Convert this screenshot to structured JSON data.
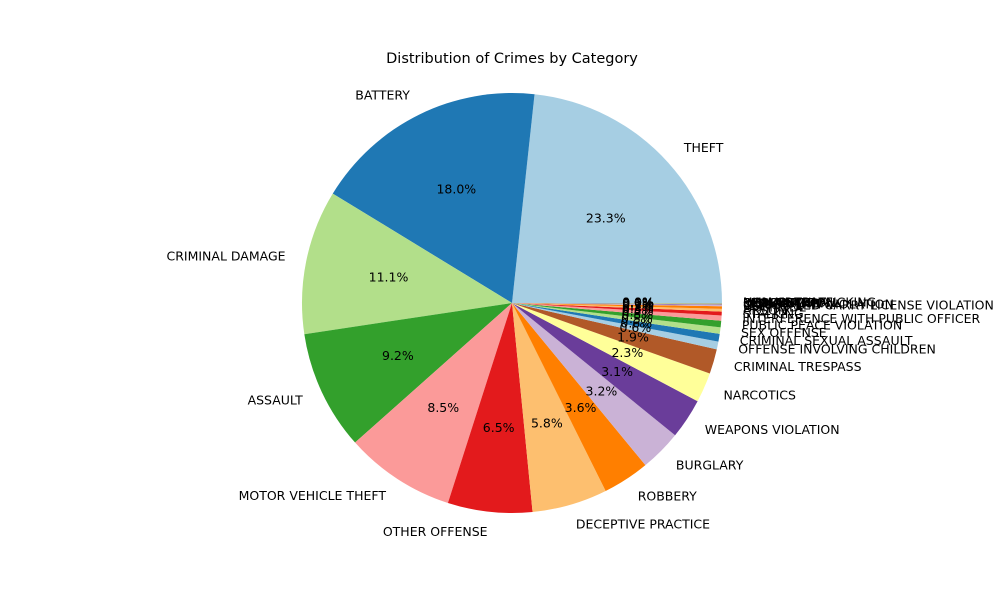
{
  "chart_data": {
    "type": "pie",
    "title": "Distribution of Crimes by Category",
    "legend": "none",
    "start_angle_deg": 0,
    "direction": "counterclockwise",
    "slices": [
      {
        "label": "THEFT",
        "value": 23.3,
        "pct": "23.3%",
        "color": "#a6cee3"
      },
      {
        "label": "BATTERY",
        "value": 18.0,
        "pct": "18.0%",
        "color": "#1f78b4"
      },
      {
        "label": "CRIMINAL DAMAGE",
        "value": 11.1,
        "pct": "11.1%",
        "color": "#b2df8a"
      },
      {
        "label": "ASSAULT",
        "value": 9.2,
        "pct": "9.2%",
        "color": "#33a02c"
      },
      {
        "label": "MOTOR VEHICLE THEFT",
        "value": 8.5,
        "pct": "8.5%",
        "color": "#fb9a99"
      },
      {
        "label": "OTHER OFFENSE",
        "value": 6.5,
        "pct": "6.5%",
        "color": "#e31a1c"
      },
      {
        "label": "DECEPTIVE PRACTICE",
        "value": 5.8,
        "pct": "5.8%",
        "color": "#fdbf6f"
      },
      {
        "label": "ROBBERY",
        "value": 3.6,
        "pct": "3.6%",
        "color": "#ff7f00"
      },
      {
        "label": "BURGLARY",
        "value": 3.2,
        "pct": "3.2%",
        "color": "#cab2d6"
      },
      {
        "label": "WEAPONS VIOLATION",
        "value": 3.1,
        "pct": "3.1%",
        "color": "#6a3d9a"
      },
      {
        "label": "NARCOTICS",
        "value": 2.3,
        "pct": "2.3%",
        "color": "#ffff99"
      },
      {
        "label": "CRIMINAL TRESPASS",
        "value": 1.9,
        "pct": "1.9%",
        "color": "#b15928"
      },
      {
        "label": "OFFENSE INVOLVING CHILDREN",
        "value": 0.6,
        "pct": "0.6%",
        "color": "#a6cee3"
      },
      {
        "label": "CRIMINAL SEXUAL ASSAULT",
        "value": 0.6,
        "pct": "0.6%",
        "color": "#1f78b4"
      },
      {
        "label": "SEX OFFENSE",
        "value": 0.5,
        "pct": "0.5%",
        "color": "#b2df8a"
      },
      {
        "label": "PUBLIC PEACE VIOLATION",
        "value": 0.5,
        "pct": "0.5%",
        "color": "#33a02c"
      },
      {
        "label": "INTERFERENCE WITH PUBLIC OFFICER",
        "value": 0.4,
        "pct": "0.4%",
        "color": "#fb9a99"
      },
      {
        "label": "STALKING",
        "value": 0.3,
        "pct": "0.3%",
        "color": "#e31a1c"
      },
      {
        "label": "ARSON",
        "value": 0.2,
        "pct": "0.2%",
        "color": "#fdbf6f"
      },
      {
        "label": "HOMICIDE",
        "value": 0.2,
        "pct": "0.2%",
        "color": "#ff7f00"
      },
      {
        "label": "CONCEALED CARRY LICENSE VIOLATION",
        "value": 0.1,
        "pct": "0.1%",
        "color": "#cab2d6"
      },
      {
        "label": "LIQUOR LAW VIOLATION",
        "value": 0.05,
        "pct": "0.1%",
        "color": "#6a3d9a"
      },
      {
        "label": "INTIMIDATION",
        "value": 0.03,
        "pct": "0.0%",
        "color": "#ffff99"
      },
      {
        "label": "KIDNAPPING",
        "value": 0.02,
        "pct": "0.0%",
        "color": "#b15928"
      },
      {
        "label": "PROSTITUTION",
        "value": 0.02,
        "pct": "0.0%",
        "color": "#a6cee3"
      },
      {
        "label": "OBSCENITY",
        "value": 0.01,
        "pct": "0.0%",
        "color": "#1f78b4"
      },
      {
        "label": "HUMAN TRAFFICKING",
        "value": 0.01,
        "pct": "0.0%",
        "color": "#b2df8a"
      },
      {
        "label": "NON-CRIMINAL",
        "value": 0.01,
        "pct": "0.0%",
        "color": "#33a02c"
      }
    ]
  }
}
